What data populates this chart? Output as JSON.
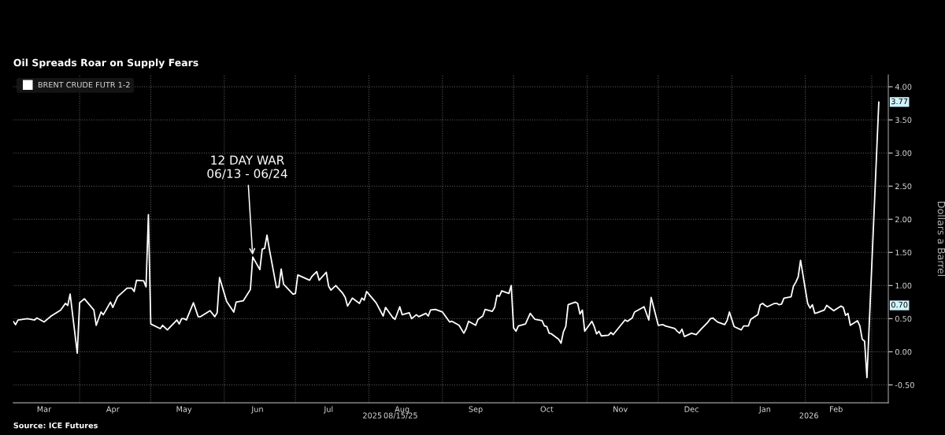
{
  "chart_data": {
    "type": "line",
    "title": "Oil Spreads Roar on Supply Fears",
    "ylabel": "Dollars a Barrel",
    "legend": "top left",
    "grid": true,
    "xlim": [
      "2025-03-04",
      "2026-03-08"
    ],
    "xticks": [
      {
        "value": "2025-03-17",
        "label": "Mar"
      },
      {
        "value": "2025-04-01",
        "label": null
      },
      {
        "value": "2025-04-15",
        "label": "Apr"
      },
      {
        "value": "2025-05-01",
        "label": null
      },
      {
        "value": "2025-05-15",
        "label": "May"
      },
      {
        "value": "2025-06-01",
        "label": null
      },
      {
        "value": "2025-06-15",
        "label": "Jun"
      },
      {
        "value": "2025-07-01",
        "label": null
      },
      {
        "value": "2025-07-15",
        "label": "Jul"
      },
      {
        "value": "2025-08-01",
        "label": null
      },
      {
        "value": "2025-08-15",
        "label": "Aug"
      },
      {
        "value": "2025-09-01",
        "label": null
      },
      {
        "value": "2025-09-15",
        "label": "Sep"
      },
      {
        "value": "2025-10-01",
        "label": null
      },
      {
        "value": "2025-10-15",
        "label": "Oct"
      },
      {
        "value": "2025-11-01",
        "label": null
      },
      {
        "value": "2025-11-15",
        "label": "Nov"
      },
      {
        "value": "2025-12-01",
        "label": null
      },
      {
        "value": "2025-12-15",
        "label": "Dec"
      },
      {
        "value": "2026-01-01",
        "label": null
      },
      {
        "value": "2026-01-15",
        "label": "Jan"
      },
      {
        "value": "2026-02-01",
        "label": null
      },
      {
        "value": "2026-02-14",
        "label": "Feb"
      },
      {
        "value": "2026-03-01",
        "label": null
      }
    ],
    "ylim": [
      -0.77,
      4.18
    ],
    "yticks": [
      {
        "value": -0.5,
        "label": "-0.50"
      },
      {
        "value": 0,
        "label": "0.00"
      },
      {
        "value": 0.5,
        "label": "0.50"
      },
      {
        "value": 1,
        "label": "1.00"
      },
      {
        "value": 1.5,
        "label": "1.50"
      },
      {
        "value": 2,
        "label": "2.00"
      },
      {
        "value": 2.5,
        "label": "2.50"
      },
      {
        "value": 3,
        "label": "3.00"
      },
      {
        "value": 3.5,
        "label": "3.50"
      },
      {
        "value": 4,
        "label": "4.00"
      }
    ],
    "annotations": [
      {
        "text": "12 DAY WAR\n06/13 - 06/24",
        "x": "2025-06-13",
        "y": 1.43
      },
      "2025",
      "08/15/25",
      "2026",
      {
        "text": "3.77",
        "y": 3.77
      },
      {
        "text": "0.70",
        "y": 0.7
      },
      "Source: ICE Futures"
    ],
    "series": [
      {
        "name": "BRENT CRUDE FUTR 1-2",
        "color": "#ffffff",
        "x": [
          "2025-03-04",
          "2025-03-05",
          "2025-03-06",
          "2025-03-10",
          "2025-03-13",
          "2025-03-14",
          "2025-03-17",
          "2025-03-20",
          "2025-03-24",
          "2025-03-26",
          "2025-03-27",
          "2025-03-28",
          "2025-03-31",
          "2025-04-01",
          "2025-04-03",
          "2025-04-07",
          "2025-04-08",
          "2025-04-10",
          "2025-04-11",
          "2025-04-14",
          "2025-04-15",
          "2025-04-17",
          "2025-04-21",
          "2025-04-23",
          "2025-04-24",
          "2025-04-25",
          "2025-04-28",
          "2025-04-29",
          "2025-04-30",
          "2025-05-01",
          "2025-05-05",
          "2025-05-06",
          "2025-05-08",
          "2025-05-12",
          "2025-05-13",
          "2025-05-14",
          "2025-05-15",
          "2025-05-16",
          "2025-05-19",
          "2025-05-21",
          "2025-05-22",
          "2025-05-26",
          "2025-05-28",
          "2025-05-29",
          "2025-05-30",
          "2025-06-02",
          "2025-06-05",
          "2025-06-06",
          "2025-06-09",
          "2025-06-12",
          "2025-06-13",
          "2025-06-16",
          "2025-06-17",
          "2025-06-18",
          "2025-06-19",
          "2025-06-20",
          "2025-06-23",
          "2025-06-24",
          "2025-06-25",
          "2025-06-26",
          "2025-06-30",
          "2025-07-01",
          "2025-07-02",
          "2025-07-07",
          "2025-07-08",
          "2025-07-10",
          "2025-07-11",
          "2025-07-14",
          "2025-07-15",
          "2025-07-16",
          "2025-07-18",
          "2025-07-21",
          "2025-07-22",
          "2025-07-23",
          "2025-07-25",
          "2025-07-28",
          "2025-07-29",
          "2025-07-30",
          "2025-07-31",
          "2025-08-04",
          "2025-08-07",
          "2025-08-08",
          "2025-08-11",
          "2025-08-12",
          "2025-08-14",
          "2025-08-15",
          "2025-08-18",
          "2025-08-19",
          "2025-08-21",
          "2025-08-22",
          "2025-08-25",
          "2025-08-26",
          "2025-08-27",
          "2025-08-29",
          "2025-09-01",
          "2025-09-04",
          "2025-09-05",
          "2025-09-08",
          "2025-09-10",
          "2025-09-11",
          "2025-09-12",
          "2025-09-15",
          "2025-09-16",
          "2025-09-18",
          "2025-09-19",
          "2025-09-22",
          "2025-09-23",
          "2025-09-24",
          "2025-09-25",
          "2025-09-26",
          "2025-09-29",
          "2025-09-30",
          "2025-10-01",
          "2025-10-02",
          "2025-10-03",
          "2025-10-06",
          "2025-10-08",
          "2025-10-10",
          "2025-10-13",
          "2025-10-14",
          "2025-10-15",
          "2025-10-16",
          "2025-10-17",
          "2025-10-20",
          "2025-10-21",
          "2025-10-22",
          "2025-10-23",
          "2025-10-24",
          "2025-10-27",
          "2025-10-28",
          "2025-10-29",
          "2025-10-30",
          "2025-10-31",
          "2025-11-03",
          "2025-11-04",
          "2025-11-05",
          "2025-11-06",
          "2025-11-07",
          "2025-11-10",
          "2025-11-11",
          "2025-11-12",
          "2025-11-17",
          "2025-11-18",
          "2025-11-20",
          "2025-11-21",
          "2025-11-24",
          "2025-11-25",
          "2025-11-27",
          "2025-11-28",
          "2025-12-01",
          "2025-12-03",
          "2025-12-04",
          "2025-12-08",
          "2025-12-09",
          "2025-12-10",
          "2025-12-11",
          "2025-12-12",
          "2025-12-15",
          "2025-12-17",
          "2025-12-19",
          "2025-12-22",
          "2025-12-23",
          "2025-12-24",
          "2025-12-26",
          "2025-12-29",
          "2025-12-30",
          "2025-12-31",
          "2026-01-02",
          "2026-01-05",
          "2026-01-06",
          "2026-01-07",
          "2026-01-08",
          "2026-01-09",
          "2026-01-12",
          "2026-01-13",
          "2026-01-14",
          "2026-01-15",
          "2026-01-16",
          "2026-01-19",
          "2026-01-20",
          "2026-01-21",
          "2026-01-22",
          "2026-01-23",
          "2026-01-26",
          "2026-01-27",
          "2026-01-28",
          "2026-01-29",
          "2026-01-30",
          "2026-02-02",
          "2026-02-03",
          "2026-02-04",
          "2026-02-05",
          "2026-02-06",
          "2026-02-09",
          "2026-02-10",
          "2026-02-13",
          "2026-02-16",
          "2026-02-17",
          "2026-02-18",
          "2026-02-19",
          "2026-02-20",
          "2026-02-23",
          "2026-02-24",
          "2026-02-25",
          "2026-02-26",
          "2026-02-27",
          "2026-03-04"
        ],
        "values": [
          0.46,
          0.41,
          0.48,
          0.5,
          0.48,
          0.51,
          0.45,
          0.54,
          0.63,
          0.73,
          0.7,
          0.87,
          -0.02,
          0.74,
          0.8,
          0.63,
          0.4,
          0.6,
          0.56,
          0.75,
          0.67,
          0.83,
          0.96,
          0.96,
          0.91,
          1.08,
          1.07,
          0.98,
          2.07,
          0.42,
          0.35,
          0.4,
          0.33,
          0.48,
          0.42,
          0.5,
          0.5,
          0.48,
          0.74,
          0.53,
          0.53,
          0.62,
          0.53,
          0.59,
          1.12,
          0.76,
          0.6,
          0.75,
          0.77,
          0.94,
          1.43,
          1.24,
          1.55,
          1.56,
          1.76,
          1.55,
          0.97,
          0.98,
          1.25,
          1.02,
          0.87,
          0.88,
          1.16,
          1.08,
          1.14,
          1.21,
          1.08,
          1.2,
          0.99,
          0.93,
          1.0,
          0.88,
          0.82,
          0.69,
          0.81,
          0.73,
          0.81,
          0.78,
          0.91,
          0.74,
          0.54,
          0.67,
          0.52,
          0.49,
          0.68,
          0.56,
          0.59,
          0.5,
          0.56,
          0.53,
          0.58,
          0.54,
          0.63,
          0.64,
          0.6,
          0.45,
          0.46,
          0.4,
          0.28,
          0.35,
          0.46,
          0.4,
          0.49,
          0.54,
          0.64,
          0.61,
          0.67,
          0.85,
          0.84,
          0.92,
          0.88,
          1.0,
          0.36,
          0.31,
          0.39,
          0.42,
          0.58,
          0.49,
          0.47,
          0.39,
          0.38,
          0.28,
          0.27,
          0.19,
          0.13,
          0.3,
          0.38,
          0.71,
          0.75,
          0.73,
          0.57,
          0.63,
          0.31,
          0.46,
          0.38,
          0.27,
          0.31,
          0.24,
          0.25,
          0.29,
          0.26,
          0.48,
          0.46,
          0.51,
          0.6,
          0.66,
          0.68,
          0.48,
          0.82,
          0.4,
          0.41,
          0.39,
          0.35,
          0.31,
          0.28,
          0.34,
          0.23,
          0.28,
          0.26,
          0.34,
          0.45,
          0.5,
          0.51,
          0.45,
          0.41,
          0.47,
          0.6,
          0.38,
          0.33,
          0.39,
          0.39,
          0.39,
          0.49,
          0.56,
          0.71,
          0.73,
          0.7,
          0.68,
          0.73,
          0.73,
          0.71,
          0.72,
          0.81,
          0.83,
          0.99,
          1.05,
          1.13,
          1.38,
          0.73,
          0.66,
          0.71,
          0.58,
          0.59,
          0.63,
          0.7,
          0.62,
          0.69,
          0.67,
          0.55,
          0.58,
          0.4,
          0.47,
          0.39,
          0.19,
          0.16,
          -0.39,
          3.77
        ]
      }
    ]
  }
}
